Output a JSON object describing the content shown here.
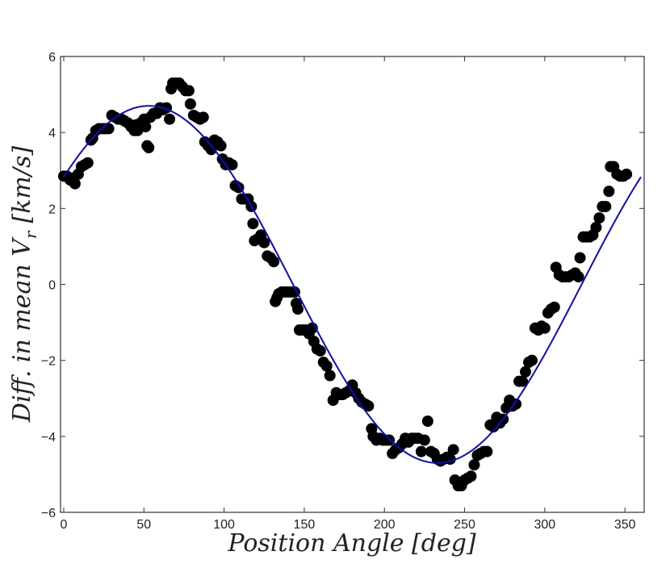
{
  "chart_data": {
    "type": "scatter",
    "xlabel": "Position Angle [deg]",
    "ylabel": "Diff. in mean V",
    "ylabel_sub": "r",
    "ylabel_unit": "[km/s]",
    "xlim": [
      -2,
      362
    ],
    "ylim": [
      -6,
      6
    ],
    "xticks": [
      0,
      50,
      100,
      150,
      200,
      250,
      300,
      350
    ],
    "yticks": [
      -6,
      -4,
      -2,
      0,
      2,
      4,
      6
    ],
    "ytick_labels": [
      "−6",
      "−4",
      "−2",
      "0",
      "2",
      "4",
      "6"
    ],
    "grid": false,
    "colors": {
      "points": "#000000",
      "fit": "#0a0acf",
      "frame": "#333333"
    },
    "fit_curve": {
      "form": "A*sin(x+phi)",
      "amplitude": 4.7,
      "phase_deg": 37,
      "x_range": [
        0,
        360
      ]
    },
    "points": [
      [
        0,
        2.85
      ],
      [
        2,
        2.85
      ],
      [
        4,
        2.75
      ],
      [
        6,
        2.8
      ],
      [
        7,
        2.65
      ],
      [
        9,
        2.9
      ],
      [
        11,
        3.1
      ],
      [
        13,
        3.15
      ],
      [
        15,
        3.2
      ],
      [
        17,
        3.8
      ],
      [
        18,
        3.85
      ],
      [
        20,
        4.05
      ],
      [
        22,
        4.1
      ],
      [
        24,
        4.1
      ],
      [
        26,
        4.1
      ],
      [
        28,
        4.1
      ],
      [
        30,
        4.45
      ],
      [
        32,
        4.4
      ],
      [
        34,
        4.35
      ],
      [
        36,
        4.35
      ],
      [
        38,
        4.3
      ],
      [
        40,
        4.25
      ],
      [
        42,
        4.15
      ],
      [
        44,
        4.05
      ],
      [
        45,
        4.2
      ],
      [
        46,
        4.05
      ],
      [
        48,
        4.25
      ],
      [
        50,
        4.35
      ],
      [
        51,
        4.15
      ],
      [
        52,
        3.65
      ],
      [
        53,
        3.6
      ],
      [
        54,
        4.4
      ],
      [
        56,
        4.5
      ],
      [
        58,
        4.5
      ],
      [
        60,
        4.65
      ],
      [
        62,
        4.6
      ],
      [
        64,
        4.65
      ],
      [
        66,
        4.35
      ],
      [
        67,
        5.15
      ],
      [
        68,
        5.3
      ],
      [
        70,
        5.3
      ],
      [
        72,
        5.3
      ],
      [
        74,
        5.2
      ],
      [
        76,
        5.1
      ],
      [
        78,
        5.1
      ],
      [
        79,
        4.75
      ],
      [
        81,
        4.45
      ],
      [
        83,
        4.4
      ],
      [
        85,
        4.35
      ],
      [
        87,
        4.4
      ],
      [
        88,
        3.75
      ],
      [
        90,
        3.65
      ],
      [
        91,
        3.7
      ],
      [
        92,
        3.55
      ],
      [
        94,
        3.8
      ],
      [
        96,
        3.75
      ],
      [
        98,
        3.65
      ],
      [
        99,
        3.3
      ],
      [
        101,
        3.15
      ],
      [
        103,
        3.2
      ],
      [
        105,
        3.15
      ],
      [
        107,
        2.6
      ],
      [
        109,
        2.55
      ],
      [
        111,
        2.25
      ],
      [
        113,
        2.25
      ],
      [
        115,
        2.25
      ],
      [
        117,
        2.05
      ],
      [
        118,
        1.6
      ],
      [
        119,
        1.15
      ],
      [
        121,
        1.2
      ],
      [
        123,
        1.3
      ],
      [
        125,
        1.1
      ],
      [
        127,
        0.75
      ],
      [
        129,
        0.7
      ],
      [
        131,
        0.6
      ],
      [
        132,
        -0.45
      ],
      [
        133,
        -0.35
      ],
      [
        134,
        -0.25
      ],
      [
        136,
        -0.2
      ],
      [
        138,
        -0.2
      ],
      [
        140,
        -0.2
      ],
      [
        142,
        -0.2
      ],
      [
        144,
        -0.2
      ],
      [
        145,
        -0.5
      ],
      [
        146,
        -0.65
      ],
      [
        147,
        -1.2
      ],
      [
        149,
        -1.2
      ],
      [
        151,
        -1.2
      ],
      [
        153,
        -1.3
      ],
      [
        155,
        -1.15
      ],
      [
        156,
        -1.5
      ],
      [
        158,
        -1.7
      ],
      [
        160,
        -1.75
      ],
      [
        162,
        -2.05
      ],
      [
        164,
        -2.15
      ],
      [
        166,
        -2.4
      ],
      [
        168,
        -3.05
      ],
      [
        170,
        -2.85
      ],
      [
        172,
        -2.9
      ],
      [
        174,
        -2.9
      ],
      [
        176,
        -2.85
      ],
      [
        178,
        -2.8
      ],
      [
        180,
        -2.65
      ],
      [
        182,
        -2.85
      ],
      [
        184,
        -3.0
      ],
      [
        186,
        -3.1
      ],
      [
        188,
        -3.15
      ],
      [
        190,
        -3.2
      ],
      [
        192,
        -3.8
      ],
      [
        193,
        -4.0
      ],
      [
        195,
        -4.1
      ],
      [
        197,
        -4.05
      ],
      [
        199,
        -4.1
      ],
      [
        201,
        -4.1
      ],
      [
        203,
        -4.1
      ],
      [
        205,
        -4.45
      ],
      [
        207,
        -4.35
      ],
      [
        209,
        -4.3
      ],
      [
        211,
        -4.2
      ],
      [
        213,
        -4.05
      ],
      [
        215,
        -4.15
      ],
      [
        217,
        -4.05
      ],
      [
        219,
        -4.05
      ],
      [
        221,
        -4.05
      ],
      [
        223,
        -4.4
      ],
      [
        225,
        -4.1
      ],
      [
        227,
        -3.6
      ],
      [
        229,
        -4.4
      ],
      [
        231,
        -4.45
      ],
      [
        233,
        -4.6
      ],
      [
        235,
        -4.65
      ],
      [
        237,
        -4.6
      ],
      [
        239,
        -4.55
      ],
      [
        241,
        -4.6
      ],
      [
        243,
        -4.35
      ],
      [
        244,
        -5.15
      ],
      [
        246,
        -5.3
      ],
      [
        248,
        -5.3
      ],
      [
        250,
        -5.15
      ],
      [
        252,
        -5.1
      ],
      [
        254,
        -5.05
      ],
      [
        256,
        -4.75
      ],
      [
        258,
        -4.5
      ],
      [
        260,
        -4.45
      ],
      [
        262,
        -4.4
      ],
      [
        264,
        -4.4
      ],
      [
        266,
        -3.7
      ],
      [
        268,
        -3.75
      ],
      [
        270,
        -3.5
      ],
      [
        272,
        -3.65
      ],
      [
        274,
        -3.55
      ],
      [
        276,
        -3.25
      ],
      [
        278,
        -3.05
      ],
      [
        280,
        -3.2
      ],
      [
        282,
        -3.15
      ],
      [
        284,
        -2.55
      ],
      [
        286,
        -2.55
      ],
      [
        288,
        -2.3
      ],
      [
        290,
        -2.05
      ],
      [
        292,
        -2.0
      ],
      [
        294,
        -1.15
      ],
      [
        296,
        -1.2
      ],
      [
        298,
        -1.1
      ],
      [
        300,
        -1.15
      ],
      [
        302,
        -0.75
      ],
      [
        304,
        -0.65
      ],
      [
        306,
        -0.6
      ],
      [
        307,
        0.45
      ],
      [
        309,
        0.25
      ],
      [
        311,
        0.2
      ],
      [
        313,
        0.2
      ],
      [
        315,
        0.2
      ],
      [
        317,
        0.25
      ],
      [
        319,
        0.3
      ],
      [
        321,
        0.2
      ],
      [
        322,
        0.7
      ],
      [
        324,
        1.25
      ],
      [
        326,
        1.25
      ],
      [
        328,
        1.25
      ],
      [
        330,
        1.3
      ],
      [
        332,
        1.5
      ],
      [
        334,
        1.75
      ],
      [
        336,
        2.05
      ],
      [
        338,
        2.05
      ],
      [
        340,
        2.45
      ],
      [
        341,
        3.1
      ],
      [
        343,
        3.1
      ],
      [
        345,
        2.9
      ],
      [
        347,
        2.85
      ],
      [
        349,
        2.85
      ],
      [
        351,
        2.9
      ]
    ]
  }
}
